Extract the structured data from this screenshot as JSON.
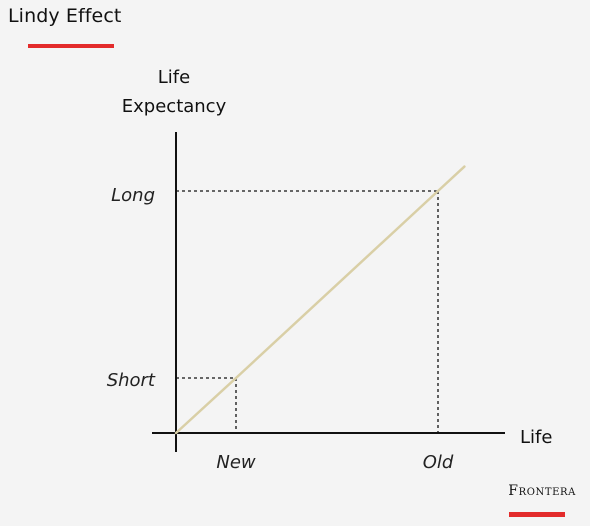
{
  "header": {
    "title": "Lindy Effect",
    "accent_color": "#e32b2b"
  },
  "brand": {
    "name": "Frontera"
  },
  "chart_data": {
    "type": "line",
    "title": "Lindy Effect",
    "xlabel": "Life",
    "ylabel_lines": [
      "Life",
      "Expectancy"
    ],
    "x_categories": [
      "New",
      "Old"
    ],
    "y_categories": [
      "Short",
      "Long"
    ],
    "series": [
      {
        "color": "#d9cfa6",
        "points": [
          {
            "x": "0",
            "y": "0"
          },
          {
            "x": "New",
            "y": "Short"
          },
          {
            "x": "Old",
            "y": "Long"
          }
        ]
      }
    ],
    "reference_lines": [
      {
        "x": "New",
        "y": "Short",
        "style": "dashed"
      },
      {
        "x": "Old",
        "y": "Long",
        "style": "dashed"
      }
    ],
    "grid": false
  }
}
